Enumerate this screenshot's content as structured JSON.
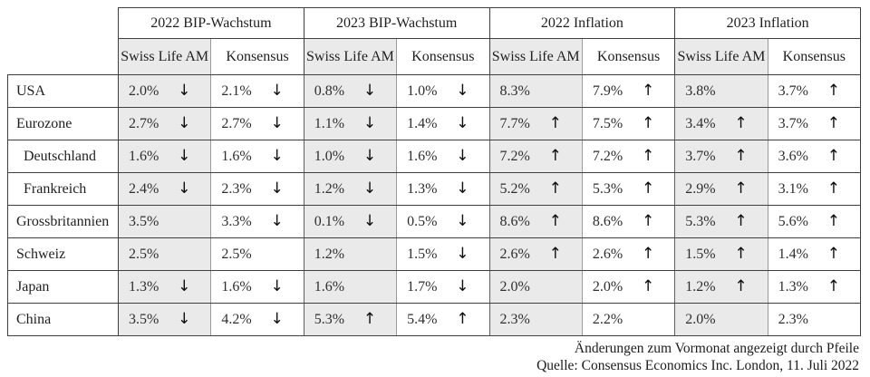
{
  "chart_data": {
    "type": "table",
    "column_groups": [
      {
        "label": "2022 BIP-Wachstum",
        "sub": [
          "Swiss Life AM",
          "Konsensus"
        ]
      },
      {
        "label": "2023 BIP-Wachstum",
        "sub": [
          "Swiss Life AM",
          "Konsensus"
        ]
      },
      {
        "label": "2022 Inflation",
        "sub": [
          "Swiss Life AM",
          "Konsensus"
        ]
      },
      {
        "label": "2023 Inflation",
        "sub": [
          "Swiss Life AM",
          "Konsensus"
        ]
      }
    ],
    "rows": [
      {
        "label": "USA",
        "indent": false,
        "cells": [
          {
            "v": "2.0%",
            "trend": "down"
          },
          {
            "v": "2.1%",
            "trend": "down"
          },
          {
            "v": "0.8%",
            "trend": "down"
          },
          {
            "v": "1.0%",
            "trend": "down"
          },
          {
            "v": "8.3%",
            "trend": ""
          },
          {
            "v": "7.9%",
            "trend": "up"
          },
          {
            "v": "3.8%",
            "trend": ""
          },
          {
            "v": "3.7%",
            "trend": "up"
          }
        ]
      },
      {
        "label": "Eurozone",
        "indent": false,
        "cells": [
          {
            "v": "2.7%",
            "trend": "down"
          },
          {
            "v": "2.7%",
            "trend": "down"
          },
          {
            "v": "1.1%",
            "trend": "down"
          },
          {
            "v": "1.4%",
            "trend": "down"
          },
          {
            "v": "7.7%",
            "trend": "up"
          },
          {
            "v": "7.5%",
            "trend": "up"
          },
          {
            "v": "3.4%",
            "trend": "up"
          },
          {
            "v": "3.7%",
            "trend": "up"
          }
        ]
      },
      {
        "label": "Deutschland",
        "indent": true,
        "cells": [
          {
            "v": "1.6%",
            "trend": "down"
          },
          {
            "v": "1.6%",
            "trend": "down"
          },
          {
            "v": "1.0%",
            "trend": "down"
          },
          {
            "v": "1.6%",
            "trend": "down"
          },
          {
            "v": "7.2%",
            "trend": "up"
          },
          {
            "v": "7.2%",
            "trend": "up"
          },
          {
            "v": "3.7%",
            "trend": "up"
          },
          {
            "v": "3.6%",
            "trend": "up"
          }
        ]
      },
      {
        "label": "Frankreich",
        "indent": true,
        "cells": [
          {
            "v": "2.4%",
            "trend": "down"
          },
          {
            "v": "2.3%",
            "trend": "down"
          },
          {
            "v": "1.2%",
            "trend": "down"
          },
          {
            "v": "1.3%",
            "trend": "down"
          },
          {
            "v": "5.2%",
            "trend": "up"
          },
          {
            "v": "5.3%",
            "trend": "up"
          },
          {
            "v": "2.9%",
            "trend": "up"
          },
          {
            "v": "3.1%",
            "trend": "up"
          }
        ]
      },
      {
        "label": "Grossbritannien",
        "indent": false,
        "cells": [
          {
            "v": "3.5%",
            "trend": ""
          },
          {
            "v": "3.3%",
            "trend": "down"
          },
          {
            "v": "0.1%",
            "trend": "down"
          },
          {
            "v": "0.5%",
            "trend": "down"
          },
          {
            "v": "8.6%",
            "trend": "up"
          },
          {
            "v": "8.6%",
            "trend": "up"
          },
          {
            "v": "5.3%",
            "trend": "up"
          },
          {
            "v": "5.6%",
            "trend": "up"
          }
        ]
      },
      {
        "label": "Schweiz",
        "indent": false,
        "cells": [
          {
            "v": "2.5%",
            "trend": ""
          },
          {
            "v": "2.5%",
            "trend": ""
          },
          {
            "v": "1.2%",
            "trend": ""
          },
          {
            "v": "1.5%",
            "trend": "down"
          },
          {
            "v": "2.6%",
            "trend": "up"
          },
          {
            "v": "2.6%",
            "trend": "up"
          },
          {
            "v": "1.5%",
            "trend": "up"
          },
          {
            "v": "1.4%",
            "trend": "up"
          }
        ]
      },
      {
        "label": "Japan",
        "indent": false,
        "cells": [
          {
            "v": "1.3%",
            "trend": "down"
          },
          {
            "v": "1.6%",
            "trend": "down"
          },
          {
            "v": "1.6%",
            "trend": ""
          },
          {
            "v": "1.7%",
            "trend": "down"
          },
          {
            "v": "2.0%",
            "trend": ""
          },
          {
            "v": "2.0%",
            "trend": "up"
          },
          {
            "v": "1.2%",
            "trend": "up"
          },
          {
            "v": "1.3%",
            "trend": "up"
          }
        ]
      },
      {
        "label": "China",
        "indent": false,
        "cells": [
          {
            "v": "3.5%",
            "trend": "down"
          },
          {
            "v": "4.2%",
            "trend": "down"
          },
          {
            "v": "5.3%",
            "trend": "up"
          },
          {
            "v": "5.4%",
            "trend": "up"
          },
          {
            "v": "2.3%",
            "trend": ""
          },
          {
            "v": "2.2%",
            "trend": ""
          },
          {
            "v": "2.0%",
            "trend": ""
          },
          {
            "v": "2.3%",
            "trend": ""
          }
        ]
      }
    ]
  },
  "icons": {
    "up": "↑",
    "down": "↓"
  },
  "footer": {
    "note": "Änderungen zum Vormonat angezeigt durch Pfeile",
    "source": "Quelle: Consensus Economics Inc. London, 11. Juli 2022"
  },
  "colors": {
    "cell_shade": "#eaeaea",
    "grid_dark": "#3f3f3f",
    "grid_light": "#9b9b9b",
    "text": "#1f1f1f"
  }
}
